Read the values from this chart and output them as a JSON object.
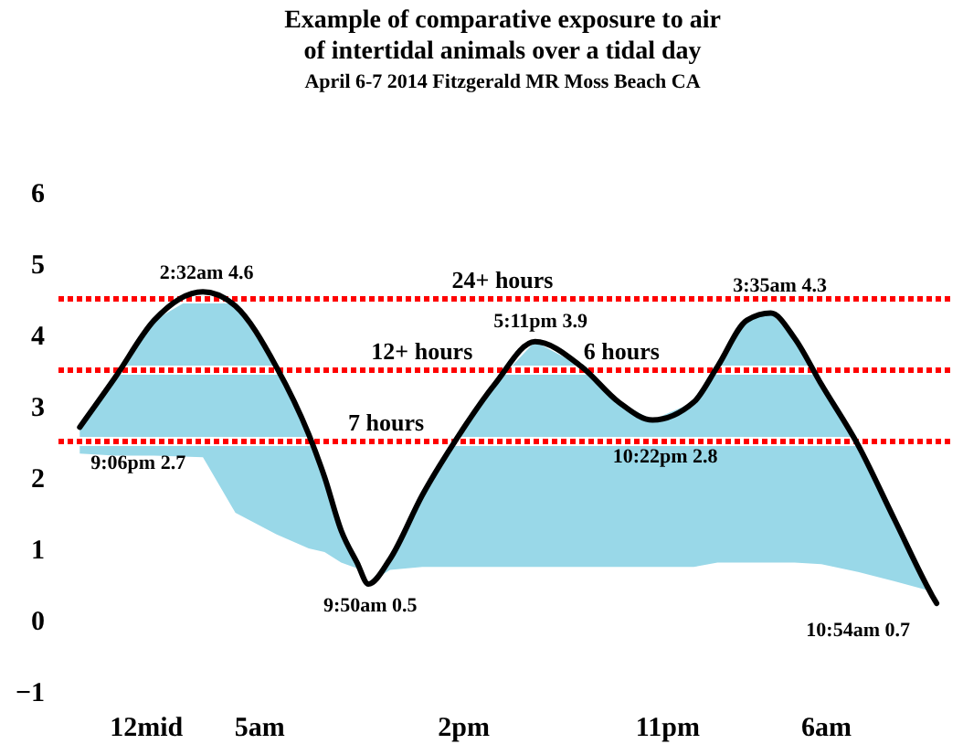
{
  "chart_data": {
    "type": "line",
    "title": "Example of comparative exposure to air of intertidal animals over a tidal day",
    "subtitle": "April 6-7 2014 Fitzgerald MR Moss Beach CA",
    "xlim": [
      "2014-04-06T20:00",
      "2014-04-08T11:30"
    ],
    "xticks": [
      {
        "value": "2014-04-07T00:00",
        "label": "12mid"
      },
      {
        "value": "2014-04-07T05:00",
        "label": "5am"
      },
      {
        "value": "2014-04-07T14:00",
        "label": "2pm"
      },
      {
        "value": "2014-04-07T23:00",
        "label": "11pm"
      },
      {
        "value": "2014-04-08T06:00",
        "label": "6am"
      }
    ],
    "ylim": [
      -1,
      6
    ],
    "yticks": [
      -1,
      0,
      1,
      2,
      3,
      4,
      5,
      6
    ],
    "x": [
      "2014-04-06T21:06",
      "2014-04-06T22:40",
      "2014-04-07T00:23",
      "2014-04-07T02:32",
      "2014-04-07T03:58",
      "2014-04-07T05:46",
      "2014-04-07T07:12",
      "2014-04-07T07:54",
      "2014-04-07T08:38",
      "2014-04-07T09:20",
      "2014-04-07T09:50",
      "2014-04-07T10:47",
      "2014-04-07T12:13",
      "2014-04-07T13:45",
      "2014-04-07T15:24",
      "2014-04-07T17:11",
      "2014-04-07T19:14",
      "2014-04-07T20:53",
      "2014-04-07T22:22",
      "2014-04-08T00:11",
      "2014-04-08T01:14",
      "2014-04-08T02:32",
      "2014-04-08T03:35",
      "2014-04-08T04:38",
      "2014-04-08T05:49",
      "2014-04-08T07:26",
      "2014-04-08T09:03",
      "2014-04-08T10:40",
      "2014-04-08T10:54"
    ],
    "series": [
      {
        "color": "#000000",
        "values": [
          2.7,
          3.4,
          4.2,
          4.6,
          4.4,
          3.55,
          2.6,
          2.0,
          1.25,
          0.8,
          0.5,
          0.85,
          1.75,
          2.55,
          3.3,
          3.9,
          3.55,
          3.05,
          2.8,
          3.05,
          3.55,
          4.2,
          4.3,
          3.95,
          3.3,
          2.45,
          1.4,
          0.36,
          0.23
        ],
        "lower": [
          2.33,
          2.3,
          2.3,
          2.28,
          1.5,
          1.2,
          1.0,
          0.95,
          0.8,
          0.72,
          0.5,
          0.7,
          0.74,
          0.74,
          0.74,
          0.74,
          0.74,
          0.74,
          0.74,
          0.74,
          0.8,
          0.8,
          0.8,
          0.8,
          0.78,
          0.67,
          0.54,
          0.4,
          0.23
        ],
        "upper": [
          2.7,
          3.4,
          4.2,
          4.6,
          4.4,
          3.55,
          2.6,
          2.0,
          1.25,
          0.8,
          0.5,
          0.85,
          1.75,
          2.55,
          3.3,
          3.9,
          3.55,
          3.05,
          2.8,
          3.05,
          3.55,
          4.2,
          4.3,
          3.95,
          3.3,
          2.45,
          1.4,
          0.36,
          0.23
        ]
      }
    ],
    "ref_lines": [
      {
        "axis": "y",
        "value": 4.5,
        "label": "24+ hours",
        "color": "#ff0000",
        "line_style": "dotted"
      },
      {
        "axis": "y",
        "value": 3.5,
        "label": "12+ hours",
        "color": "#ff0000",
        "line_style": "dotted"
      },
      {
        "axis": "y",
        "value": 2.5,
        "label": "7 hours",
        "color": "#ff0000",
        "line_style": "dotted"
      }
    ],
    "annotations": [
      {
        "text": "2:32am 4.6",
        "x": "2014-04-07T02:32",
        "y": 4.6
      },
      {
        "text": "9:06pm 2.7",
        "x": "2014-04-06T21:06",
        "y": 2.7
      },
      {
        "text": "9:50am 0.5",
        "x": "2014-04-07T09:50",
        "y": 0.5
      },
      {
        "text": "5:11pm 3.9",
        "x": "2014-04-07T17:11",
        "y": 3.9
      },
      {
        "text": "10:22pm  2.8",
        "x": "2014-04-07T22:22",
        "y": 2.8
      },
      {
        "text": "3:35am 4.3",
        "x": "2014-04-08T03:35",
        "y": 4.3
      },
      {
        "text": "10:54am 0.7",
        "x": "2014-04-08T10:54",
        "y": 0.23
      },
      {
        "text": "6 hours",
        "x": "2014-04-07T21:00",
        "y": 3.5
      }
    ]
  }
}
